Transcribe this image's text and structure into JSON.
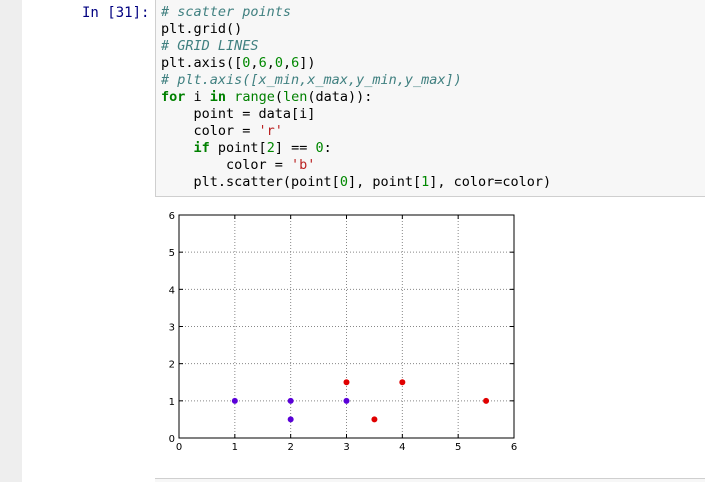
{
  "cell": {
    "prompt": "In [31]:",
    "code_lines": [
      [
        {
          "t": "# scatter points",
          "c": "comment"
        }
      ],
      [
        {
          "t": "plt.grid()",
          "c": ""
        }
      ],
      [
        {
          "t": "# GRID LINES",
          "c": "comment"
        }
      ],
      [
        {
          "t": "plt.axis([",
          "c": ""
        },
        {
          "t": "0",
          "c": "number"
        },
        {
          "t": ",",
          "c": ""
        },
        {
          "t": "6",
          "c": "number"
        },
        {
          "t": ",",
          "c": ""
        },
        {
          "t": "0",
          "c": "number"
        },
        {
          "t": ",",
          "c": ""
        },
        {
          "t": "6",
          "c": "number"
        },
        {
          "t": "])",
          "c": ""
        }
      ],
      [
        {
          "t": "# plt.axis([x_min,x_max,y_min,y_max])",
          "c": "comment"
        }
      ],
      [
        {
          "t": "for",
          "c": "keyword"
        },
        {
          "t": " i ",
          "c": ""
        },
        {
          "t": "in",
          "c": "keyword"
        },
        {
          "t": " ",
          "c": ""
        },
        {
          "t": "range",
          "c": "builtin"
        },
        {
          "t": "(",
          "c": ""
        },
        {
          "t": "len",
          "c": "builtin"
        },
        {
          "t": "(data)):",
          "c": ""
        }
      ],
      [
        {
          "t": "    point = data[i]",
          "c": ""
        }
      ],
      [
        {
          "t": "    color = ",
          "c": ""
        },
        {
          "t": "'r'",
          "c": "string"
        }
      ],
      [
        {
          "t": "    ",
          "c": ""
        },
        {
          "t": "if",
          "c": "keyword"
        },
        {
          "t": " point[",
          "c": ""
        },
        {
          "t": "2",
          "c": "number"
        },
        {
          "t": "] == ",
          "c": ""
        },
        {
          "t": "0",
          "c": "number"
        },
        {
          "t": ":",
          "c": ""
        }
      ],
      [
        {
          "t": "        color = ",
          "c": ""
        },
        {
          "t": "'b'",
          "c": "string"
        }
      ],
      [
        {
          "t": "    plt.scatter(point[",
          "c": ""
        },
        {
          "t": "0",
          "c": "number"
        },
        {
          "t": "], point[",
          "c": ""
        },
        {
          "t": "1",
          "c": "number"
        },
        {
          "t": "], color=color)",
          "c": ""
        }
      ]
    ]
  },
  "chart_data": {
    "type": "scatter",
    "xlim": [
      0,
      6
    ],
    "ylim": [
      0,
      6
    ],
    "xticks": [
      "0",
      "1",
      "2",
      "3",
      "4",
      "5",
      "6"
    ],
    "yticks": [
      "0",
      "1",
      "2",
      "3",
      "4",
      "5",
      "6"
    ],
    "grid": true,
    "points": [
      {
        "x": 1,
        "y": 1,
        "color": "#5a00d8"
      },
      {
        "x": 2,
        "y": 1,
        "color": "#5a00d8"
      },
      {
        "x": 2,
        "y": 0.5,
        "color": "#5a00d8"
      },
      {
        "x": 3,
        "y": 1,
        "color": "#5a00d8"
      },
      {
        "x": 3,
        "y": 1.5,
        "color": "#e00000"
      },
      {
        "x": 3.5,
        "y": 0.5,
        "color": "#e00000"
      },
      {
        "x": 4,
        "y": 1.5,
        "color": "#e00000"
      },
      {
        "x": 5.5,
        "y": 1,
        "color": "#e00000"
      }
    ]
  }
}
